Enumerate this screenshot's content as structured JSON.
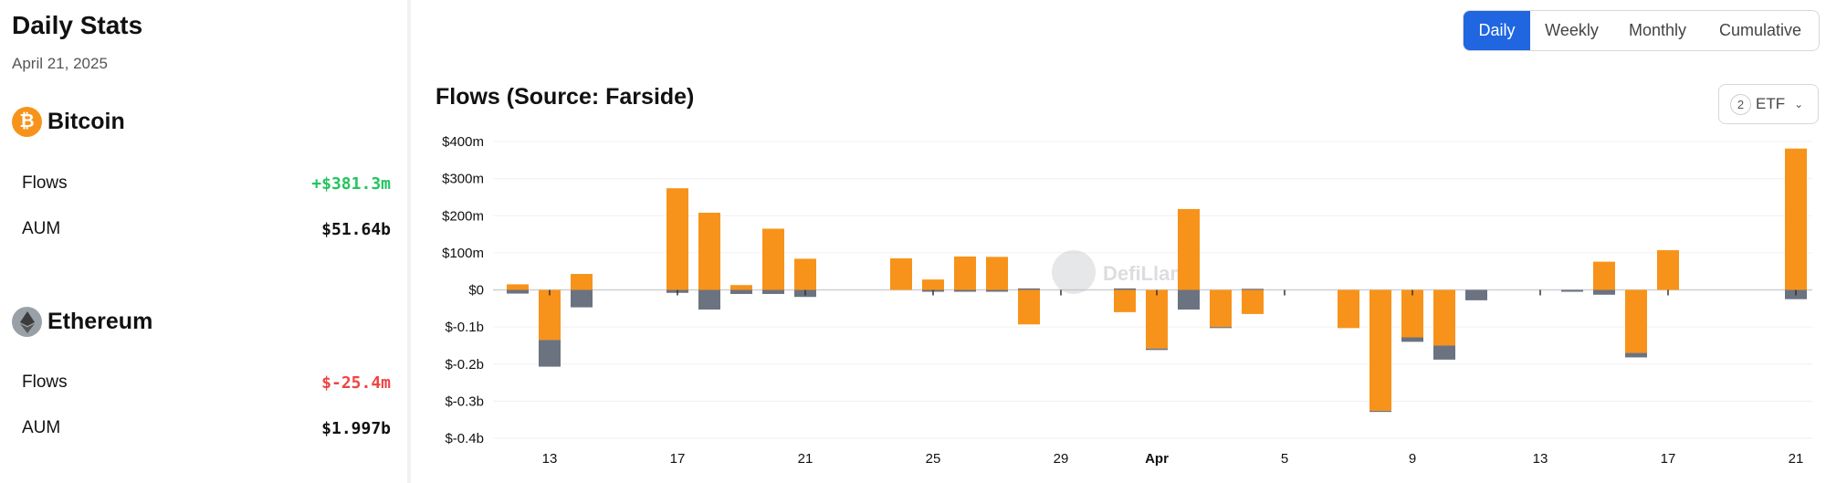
{
  "stats": {
    "title": "Daily Stats",
    "date": "April 21, 2025",
    "bitcoin": {
      "name": "Bitcoin",
      "icon": "bitcoin-icon",
      "color": "#f7931a",
      "flows_label": "Flows",
      "flows_value": "+$381.3m",
      "aum_label": "AUM",
      "aum_value": "$51.64b"
    },
    "ethereum": {
      "name": "Ethereum",
      "icon": "ethereum-icon",
      "color": "#9aa0a8",
      "flows_label": "Flows",
      "flows_value": "$-25.4m",
      "aum_label": "AUM",
      "aum_value": "$1.997b"
    }
  },
  "tabs": [
    "Daily",
    "Weekly",
    "Monthly",
    "Cumulative"
  ],
  "active_tab": "Daily",
  "etf_filter": {
    "count": "2",
    "label": "ETF"
  },
  "watermark": "DefiLlama",
  "chart_data": {
    "type": "bar",
    "stacked": true,
    "title": "Flows (Source: Farside)",
    "ylim": [
      -400,
      400
    ],
    "y_ticks": [
      400,
      300,
      200,
      100,
      0,
      -100,
      -200,
      -300,
      -400
    ],
    "y_tick_labels": [
      "$400m",
      "$300m",
      "$200m",
      "$100m",
      "$0",
      "$-0.1b",
      "$-0.2b",
      "$-0.3b",
      "$-0.4b"
    ],
    "x_ticks": [
      {
        "day": 5,
        "label": "13"
      },
      {
        "day": 9,
        "label": "17"
      },
      {
        "day": 13,
        "label": "21"
      },
      {
        "day": 17,
        "label": "25"
      },
      {
        "day": 21,
        "label": "29"
      },
      {
        "day": 24,
        "label": "Apr",
        "bold": true
      },
      {
        "day": 28,
        "label": "5"
      },
      {
        "day": 32,
        "label": "9"
      },
      {
        "day": 36,
        "label": "13"
      },
      {
        "day": 40,
        "label": "17"
      },
      {
        "day": 44,
        "label": "21"
      }
    ],
    "colors": {
      "Bitcoin": "#f7931a",
      "Ethereum": "#6b7280"
    },
    "days": [
      {
        "d": 4,
        "btc": 15,
        "eth": -10
      },
      {
        "d": 5,
        "btc": -135,
        "eth": -72
      },
      {
        "d": 6,
        "btc": 43,
        "eth": -47
      },
      {
        "d": 9,
        "btc": 274,
        "eth": -8
      },
      {
        "d": 10,
        "btc": 208,
        "eth": -53
      },
      {
        "d": 11,
        "btc": 13,
        "eth": -11
      },
      {
        "d": 12,
        "btc": 165,
        "eth": -11
      },
      {
        "d": 13,
        "btc": 84,
        "eth": -19
      },
      {
        "d": 16,
        "btc": 85,
        "eth": 0
      },
      {
        "d": 17,
        "btc": 28,
        "eth": -5
      },
      {
        "d": 18,
        "btc": 90,
        "eth": -5
      },
      {
        "d": 19,
        "btc": 89,
        "eth": -5
      },
      {
        "d": 20,
        "btc": -93,
        "eth": 4
      },
      {
        "d": 23,
        "btc": -60,
        "eth": 4
      },
      {
        "d": 24,
        "btc": -158,
        "eth": -4
      },
      {
        "d": 25,
        "btc": 218,
        "eth": -53
      },
      {
        "d": 26,
        "btc": -100,
        "eth": -3
      },
      {
        "d": 27,
        "btc": -65,
        "eth": 3
      },
      {
        "d": 30,
        "btc": -103,
        "eth": 0
      },
      {
        "d": 31,
        "btc": -326,
        "eth": -3
      },
      {
        "d": 32,
        "btc": -128,
        "eth": -12
      },
      {
        "d": 33,
        "btc": -150,
        "eth": -38
      },
      {
        "d": 34,
        "btc": 0,
        "eth": -28
      },
      {
        "d": 37,
        "btc": 0,
        "eth": -5
      },
      {
        "d": 38,
        "btc": 76,
        "eth": -13
      },
      {
        "d": 39,
        "btc": -170,
        "eth": -12
      },
      {
        "d": 40,
        "btc": 107,
        "eth": 0
      },
      {
        "d": 44,
        "btc": 381,
        "eth": -25
      }
    ]
  }
}
